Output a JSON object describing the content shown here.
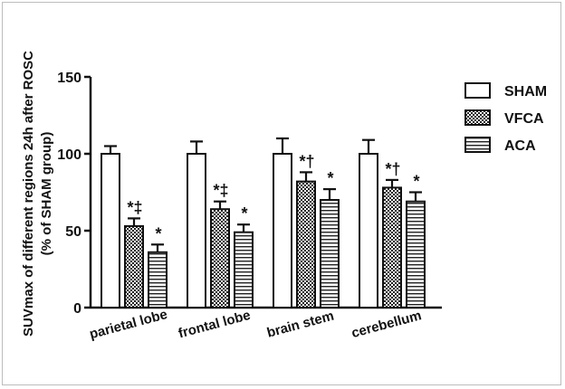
{
  "chart_data": {
    "type": "bar",
    "title": "",
    "ylabel_line1": "SUVmax of different regions 24h after ROSC",
    "ylabel_line2": "(% of  SHAM group)",
    "xlabel": "",
    "ylim": [
      0,
      150
    ],
    "yticks": [
      "0",
      "50",
      "100",
      "150"
    ],
    "categories": [
      "parietal lobe",
      "frontal lobe",
      "brain stem",
      "cerebellum"
    ],
    "legend_position": "right",
    "series": [
      {
        "name": "SHAM",
        "pattern": "plain",
        "values": [
          100,
          100,
          100,
          100
        ],
        "errors": [
          5,
          8,
          10,
          9
        ],
        "annotations": [
          "",
          "",
          "",
          ""
        ]
      },
      {
        "name": "VFCA",
        "pattern": "checker",
        "values": [
          53,
          64,
          82,
          78
        ],
        "errors": [
          5,
          5,
          6,
          5
        ],
        "annotations": [
          "*‡",
          "*‡",
          "*†",
          "*†"
        ]
      },
      {
        "name": "ACA",
        "pattern": "horizontal-lines",
        "values": [
          36,
          49,
          70,
          69
        ],
        "errors": [
          5,
          5,
          7,
          6
        ],
        "annotations": [
          "*",
          "*",
          "*",
          "*"
        ]
      }
    ]
  }
}
